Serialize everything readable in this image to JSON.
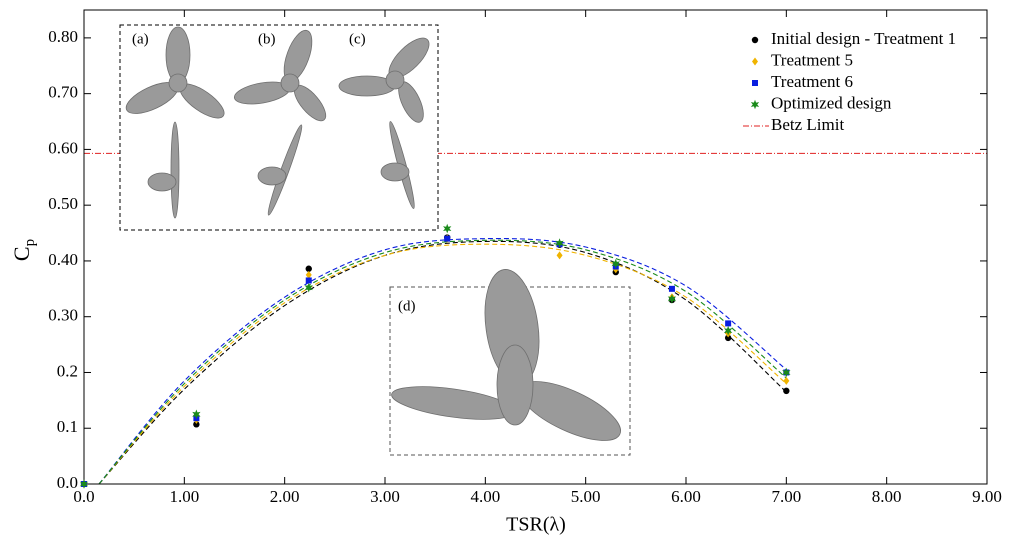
{
  "chart_data": {
    "type": "scatter",
    "xlabel": "TSR(λ)",
    "ylabel": {
      "text": "C",
      "subscript": "p"
    },
    "xlim": [
      0,
      9
    ],
    "ylim": [
      0,
      0.85
    ],
    "xticks": [
      {
        "value": 0,
        "label": "0.0"
      },
      {
        "value": 1,
        "label": "1.00"
      },
      {
        "value": 2,
        "label": "2.00"
      },
      {
        "value": 3,
        "label": "3.00"
      },
      {
        "value": 4,
        "label": "4.00"
      },
      {
        "value": 5,
        "label": "5.00"
      },
      {
        "value": 6,
        "label": "6.00"
      },
      {
        "value": 7,
        "label": "7.00"
      },
      {
        "value": 8,
        "label": "8.00"
      },
      {
        "value": 9,
        "label": "9.00"
      }
    ],
    "yticks": [
      {
        "value": 0,
        "label": "0.0"
      },
      0.1,
      0.2,
      {
        "value": 0.3,
        "label": "0.30"
      },
      {
        "value": 0.4,
        "label": "0.40"
      },
      {
        "value": 0.5,
        "label": "0.50"
      },
      {
        "value": 0.6,
        "label": "0.60"
      },
      {
        "value": 0.7,
        "label": "0.70"
      },
      {
        "value": 0.8,
        "label": "0.80"
      }
    ],
    "x": [
      0,
      1.12,
      2.24,
      3.62,
      4.74,
      5.3,
      5.86,
      6.42,
      7.0
    ],
    "fit_x": [
      0.15,
      1,
      2,
      3,
      4,
      5,
      6,
      7
    ],
    "series": [
      {
        "name": "Initial design - Treatment 1",
        "color": "#000000",
        "marker": "circle",
        "values": [
          0,
          0.107,
          0.386,
          0.442,
          0.429,
          0.38,
          0.33,
          0.262,
          0.167
        ],
        "fit_values": [
          0,
          0.17,
          0.32,
          0.41,
          0.435,
          0.415,
          0.33,
          0.165
        ]
      },
      {
        "name": "Treatment 5",
        "color": "#f0b400",
        "marker": "diamond",
        "values": [
          0,
          0.115,
          0.375,
          0.44,
          0.41,
          0.385,
          0.335,
          0.27,
          0.185
        ],
        "fit_values": [
          0,
          0.175,
          0.325,
          0.41,
          0.43,
          0.41,
          0.335,
          0.18
        ]
      },
      {
        "name": "Treatment 6",
        "color": "#0a1ee0",
        "marker": "square",
        "values": [
          0,
          0.118,
          0.365,
          0.44,
          0.43,
          0.39,
          0.35,
          0.288,
          0.2
        ],
        "fit_values": [
          0,
          0.185,
          0.335,
          0.42,
          0.44,
          0.425,
          0.355,
          0.205
        ]
      },
      {
        "name": "Optimized design",
        "color": "#1a8a1a",
        "marker": "star",
        "values": [
          0,
          0.125,
          0.352,
          0.458,
          0.432,
          0.395,
          0.332,
          0.275,
          0.2
        ],
        "fit_values": [
          0,
          0.18,
          0.33,
          0.415,
          0.437,
          0.42,
          0.345,
          0.19
        ]
      }
    ],
    "reference_lines": [
      {
        "name": "Betz Limit",
        "value": 0.593,
        "color": "#e02020"
      }
    ],
    "inset_labels": [
      "(a)",
      "(b)",
      "(c)",
      "(d)"
    ]
  }
}
